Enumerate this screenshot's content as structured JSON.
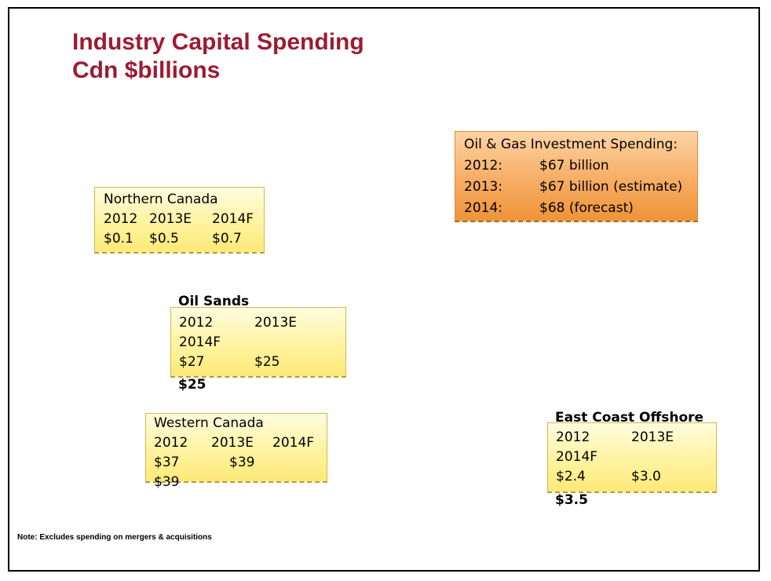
{
  "title": {
    "line1": "Industry Capital Spending",
    "line2": "Cdn $billions"
  },
  "investment": {
    "heading": "Oil & Gas Investment Spending:",
    "rows": [
      {
        "year": "2012:",
        "value": "$67 billion"
      },
      {
        "year": "2013:",
        "value": "$67 billion (estimate)"
      },
      {
        "year": "2014:",
        "value": "$68 (forecast)"
      }
    ]
  },
  "northern": {
    "heading": "Northern Canada",
    "y1": "2012",
    "y2": "2013E",
    "y3": "2014F",
    "v1": "$0.1",
    "v2": "$0.5",
    "v3": "$0.7"
  },
  "oil_sands": {
    "heading": "Oil Sands",
    "y1": "2012",
    "y2": "2013E",
    "y3": "2014F",
    "v1": "$27",
    "v2": "$25",
    "v3": "$25"
  },
  "western": {
    "heading": "Western Canada",
    "y1": "2012",
    "y2": "2013E",
    "y3": "2014F",
    "v1": "$37",
    "v2": "$39",
    "v3": "$39"
  },
  "east_coast": {
    "heading": "East Coast Offshore",
    "y1": "2012",
    "y2": "2013E",
    "y3": "2014F",
    "v1": "$2.4",
    "v2": "$3.0",
    "v3": "$3.5"
  },
  "note": "Note: Excludes spending on mergers & acquisitions"
}
